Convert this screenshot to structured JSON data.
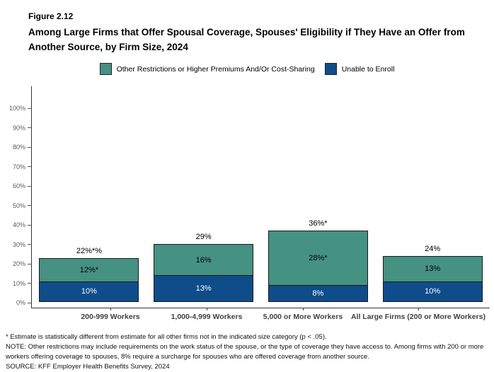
{
  "header": {
    "figure_label": "Figure 2.12",
    "title": "Among Large Firms that Offer Spousal Coverage, Spouses' Eligibility if They Have an Offer from Another Source, by Firm Size, 2024"
  },
  "legend": {
    "items": [
      {
        "label": "Other Restrictions or Higher Premiums And/Or Cost-Sharing",
        "color": "#459182"
      },
      {
        "label": "Unable to Enroll",
        "color": "#0f4d8a"
      }
    ]
  },
  "chart_data": {
    "type": "bar",
    "stacked": true,
    "title": "Among Large Firms that Offer Spousal Coverage, Spouses' Eligibility if They Have an Offer from Another Source, by Firm Size, 2024",
    "categories": [
      "200-999 Workers",
      "1,000-4,999 Workers",
      "5,000 or More Workers",
      "All Large Firms (200 or More Workers)"
    ],
    "series": [
      {
        "name": "Unable to Enroll",
        "color": "#0f4d8a",
        "values": [
          10,
          13,
          8,
          10
        ],
        "labels": [
          "10%",
          "13%",
          "8%",
          "10%"
        ]
      },
      {
        "name": "Other Restrictions or Higher Premiums And/Or Cost-Sharing",
        "color": "#459182",
        "values": [
          12,
          16,
          28,
          13
        ],
        "labels": [
          "12%*",
          "16%",
          "28%*",
          "13%"
        ]
      }
    ],
    "total_labels": [
      "22%*%",
      "29%",
      "36%*",
      "24%"
    ],
    "ylim": [
      0,
      100
    ],
    "ytick_step": 10,
    "ytick_labels": [
      "0%",
      "10%",
      "20%",
      "30%",
      "40%",
      "50%",
      "60%",
      "70%",
      "80%",
      "90%",
      "100%"
    ],
    "grid": false,
    "legend_position": "top",
    "xlabel": "",
    "ylabel": ""
  },
  "footnotes": {
    "star": "* Estimate is statistically different from estimate for all other firms not in the indicated size category (p < .05).",
    "note": "NOTE: Other restrictions may include requirements on the work status of the spouse, or the type of coverage they have access to. Among firms with 200 or more workers offering coverage to spouses, 8% require a surcharge for spouses who are offered coverage from another source.",
    "source": "SOURCE: KFF Employer Health Benefits Survey, 2024"
  }
}
